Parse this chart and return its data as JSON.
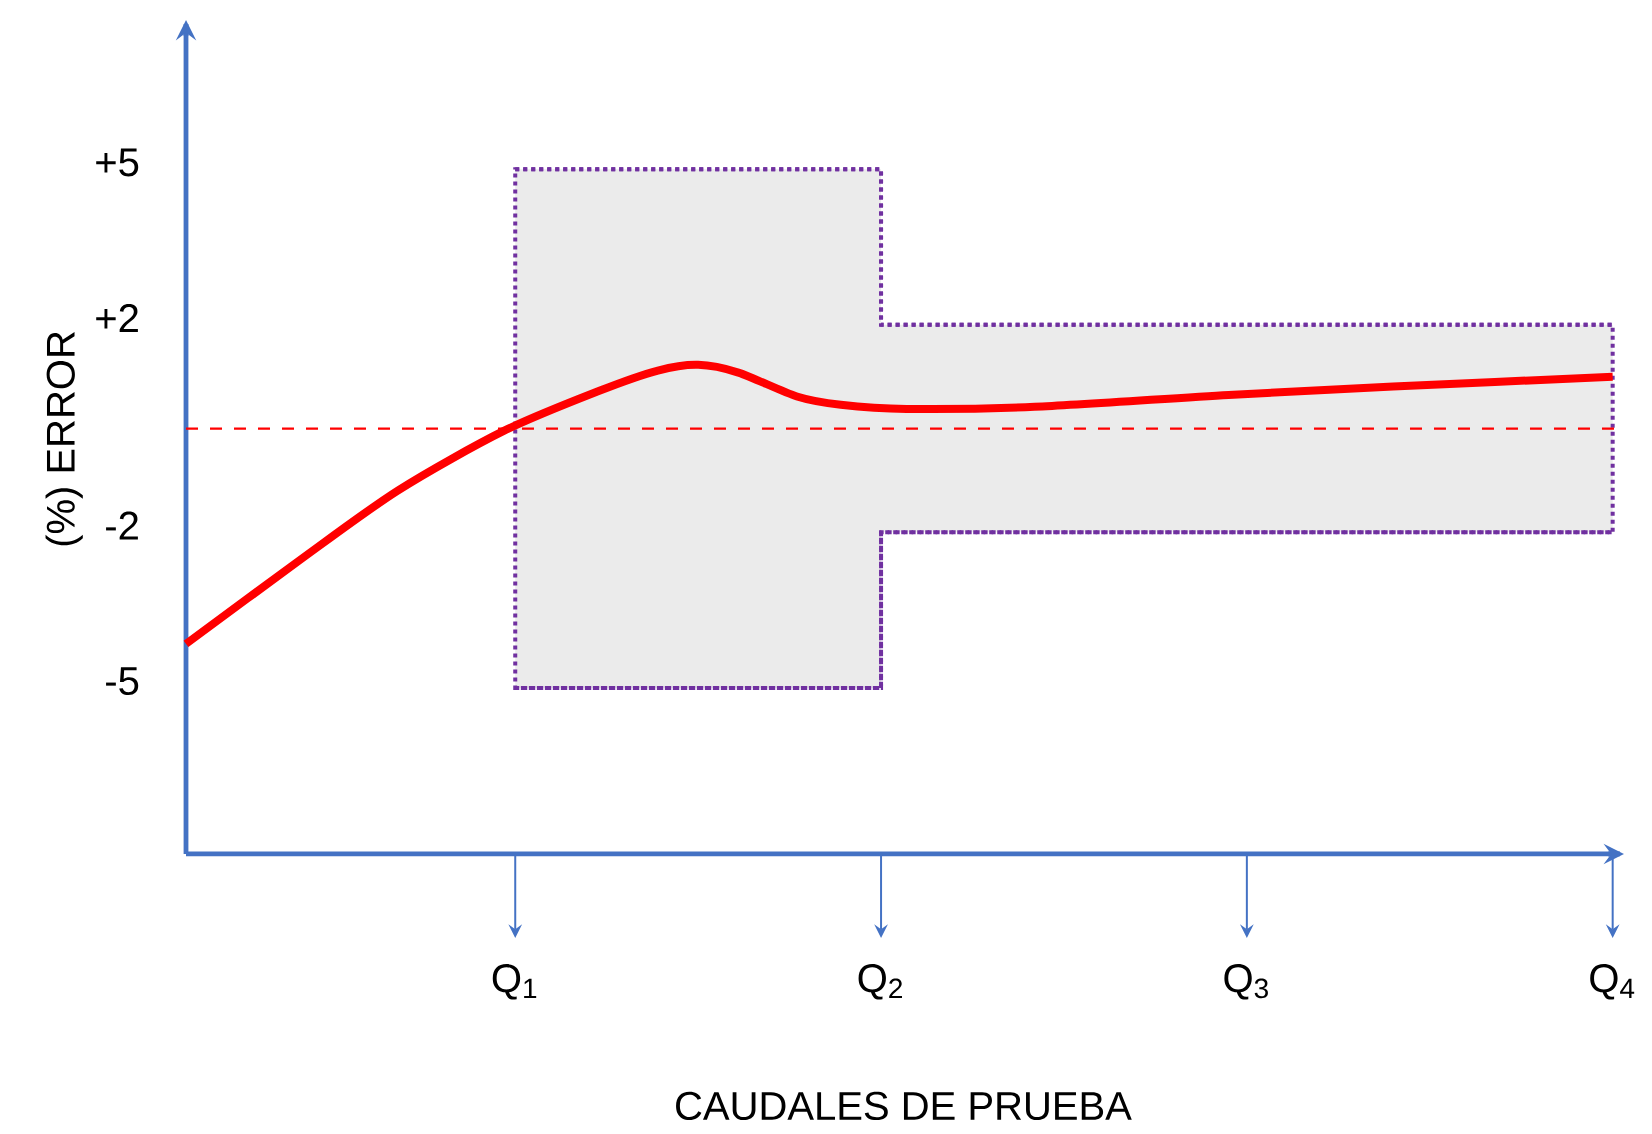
{
  "chart_data": {
    "type": "line",
    "xlabel": "CAUDALES DE PRUEBA",
    "ylabel": "(%) ERROR",
    "xlim": [
      0.1,
      4.02
    ],
    "ylim": [
      -8.2,
      7.8
    ],
    "xticks": [
      {
        "value": 1,
        "label": "Q$_{1}$"
      },
      {
        "value": 2,
        "label": "Q$_{2}$"
      },
      {
        "value": 3,
        "label": "Q$_{3}$"
      },
      {
        "value": 4,
        "label": "Q$_{4}$"
      }
    ],
    "yticks": [
      {
        "value": 5,
        "label": "+5"
      },
      {
        "value": 2,
        "label": "+2"
      },
      -2,
      -5
    ],
    "grid": false,
    "series": [
      {
        "type": "line",
        "color": "#7030a0",
        "line_style": "dotted",
        "x": [
          1,
          2,
          2,
          4
        ],
        "values": [
          5,
          5,
          2,
          2
        ],
        "lower": [
          -5,
          -5,
          -2,
          -2
        ],
        "upper": [
          5,
          5,
          2,
          2
        ]
      },
      {
        "type": "line",
        "color": "#7030a0",
        "line_style": "dotted",
        "x": [
          1,
          2,
          2,
          4
        ],
        "values": [
          -5,
          -5,
          -2,
          -2
        ]
      },
      {
        "type": "line",
        "color": "#ff0000",
        "line_style": "solid",
        "x": [
          0.1,
          0.41,
          0.68,
          0.97,
          1.23,
          1.39,
          1.5,
          1.61,
          1.77,
          1.89,
          2.07,
          2.42,
          2.95,
          3.4,
          4.0
        ],
        "values": [
          -4.15,
          -2.54,
          -1.19,
          -0.04,
          0.73,
          1.12,
          1.23,
          1.08,
          0.62,
          0.46,
          0.38,
          0.42,
          0.65,
          0.81,
          1.0
        ]
      }
    ],
    "ref_lines": [
      {
        "axis": "y",
        "value": 0,
        "color": "#ff0000",
        "line_style": "dashed"
      }
    ]
  }
}
